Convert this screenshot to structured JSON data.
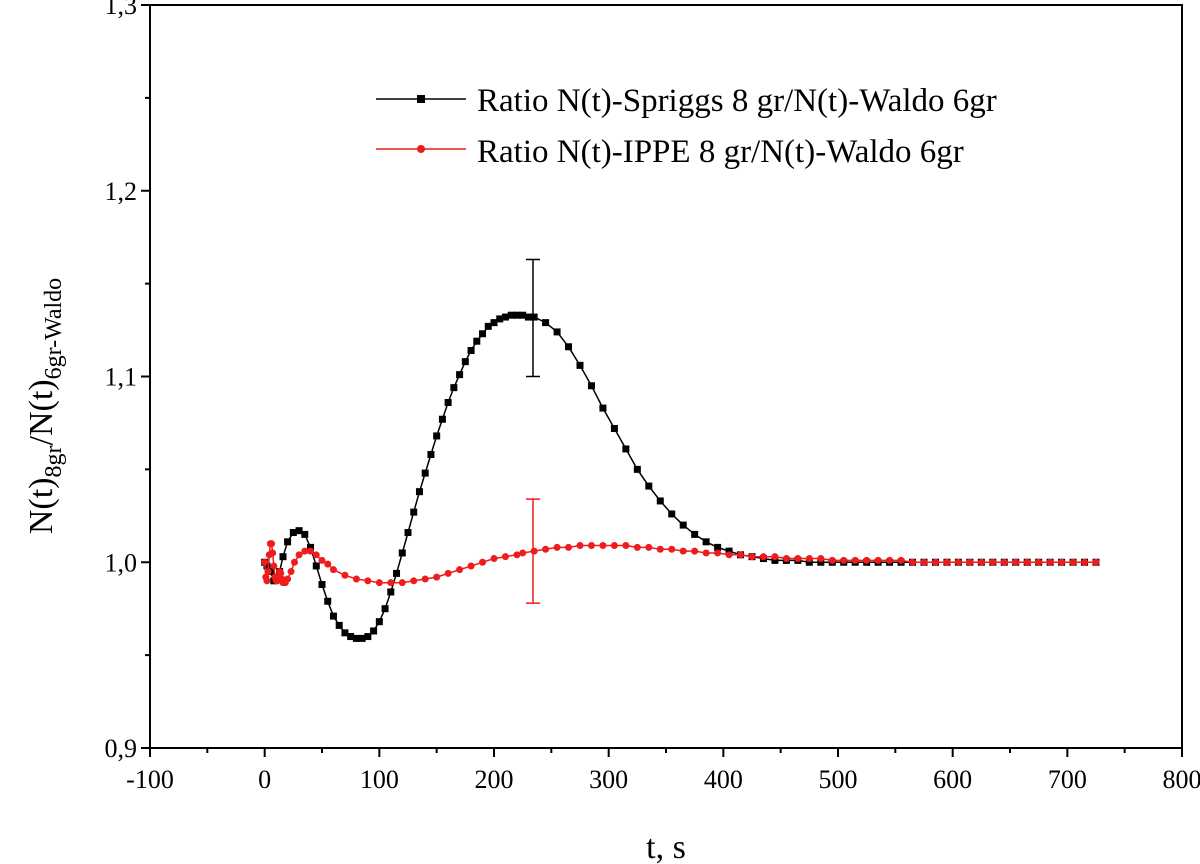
{
  "chart_data": {
    "type": "line",
    "title": "",
    "xlabel": "t, s",
    "ylabel": {
      "main1": "N(t)",
      "sub1": "8gr",
      "slash": "/N(t)",
      "sub2": "6gr-Waldo"
    },
    "xlim": [
      -100,
      800
    ],
    "ylim": [
      0.9,
      1.3
    ],
    "x_ticks": [
      -100,
      0,
      100,
      200,
      300,
      400,
      500,
      600,
      700,
      800
    ],
    "x_tick_labels": [
      "-100",
      "0",
      "100",
      "200",
      "300",
      "400",
      "500",
      "600",
      "700",
      "800"
    ],
    "y_ticks": [
      0.9,
      1.0,
      1.1,
      1.2,
      1.3
    ],
    "y_tick_labels": [
      "0,9",
      "1,0",
      "1,1",
      "1,2",
      "1,3"
    ],
    "legend_position": "top-right",
    "series": [
      {
        "name": "Ratio N(t)-Spriggs 8 gr/N(t)-Waldo 6gr",
        "color": "#000000",
        "marker": "square",
        "x": [
          0,
          2,
          5,
          8,
          10,
          13,
          16,
          20,
          25,
          30,
          35,
          40,
          45,
          50,
          55,
          60,
          65,
          70,
          75,
          80,
          85,
          90,
          95,
          100,
          105,
          110,
          115,
          120,
          125,
          130,
          135,
          140,
          145,
          150,
          155,
          160,
          165,
          170,
          175,
          180,
          185,
          190,
          195,
          200,
          205,
          210,
          215,
          220,
          225,
          230,
          235,
          245,
          255,
          265,
          275,
          285,
          295,
          305,
          315,
          325,
          335,
          345,
          355,
          365,
          375,
          385,
          395,
          405,
          415,
          425,
          435,
          445,
          455,
          465,
          475,
          485,
          495,
          505,
          515,
          525,
          535,
          545,
          555,
          565,
          575,
          585,
          595,
          605,
          615,
          625,
          635,
          645,
          655,
          665,
          675,
          685,
          695,
          705,
          715,
          725
        ],
        "y": [
          1.0,
          0.998,
          0.995,
          0.99,
          0.991,
          0.995,
          1.003,
          1.011,
          1.016,
          1.017,
          1.015,
          1.008,
          0.998,
          0.988,
          0.979,
          0.971,
          0.966,
          0.962,
          0.96,
          0.959,
          0.959,
          0.96,
          0.963,
          0.968,
          0.975,
          0.984,
          0.994,
          1.005,
          1.016,
          1.027,
          1.038,
          1.048,
          1.058,
          1.068,
          1.077,
          1.086,
          1.094,
          1.101,
          1.108,
          1.114,
          1.119,
          1.123,
          1.127,
          1.129,
          1.131,
          1.132,
          1.133,
          1.133,
          1.133,
          1.132,
          1.132,
          1.129,
          1.124,
          1.116,
          1.106,
          1.095,
          1.083,
          1.072,
          1.061,
          1.05,
          1.041,
          1.033,
          1.026,
          1.02,
          1.015,
          1.011,
          1.008,
          1.006,
          1.004,
          1.003,
          1.002,
          1.001,
          1.001,
          1.001,
          1.0,
          1.0,
          1.0,
          1.0,
          1.0,
          1.0,
          1.0,
          1.0,
          1.0,
          1.0,
          1.0,
          1.0,
          1.0,
          1.0,
          1.0,
          1.0,
          1.0,
          1.0,
          1.0,
          1.0,
          1.0,
          1.0,
          1.0,
          1.0,
          1.0,
          1.0
        ],
        "error_bar": {
          "x": 234,
          "y": 1.132,
          "low": 1.1,
          "high": 1.163
        }
      },
      {
        "name": "Ratio N(t)-IPPE 8 gr/N(t)-Waldo 6gr",
        "color": "#ee1c1c",
        "marker": "circle",
        "x": [
          0,
          1,
          2,
          3,
          4,
          5,
          6,
          7,
          8,
          9,
          10,
          11,
          12,
          13,
          14,
          15,
          16,
          18,
          20,
          23,
          26,
          30,
          35,
          40,
          45,
          50,
          55,
          60,
          70,
          80,
          90,
          100,
          110,
          120,
          130,
          140,
          150,
          160,
          170,
          180,
          190,
          200,
          210,
          220,
          225,
          235,
          245,
          255,
          265,
          275,
          285,
          295,
          305,
          315,
          325,
          335,
          345,
          355,
          365,
          375,
          385,
          395,
          405,
          415,
          425,
          435,
          445,
          455,
          465,
          475,
          485,
          495,
          505,
          515,
          525,
          535,
          545,
          555,
          565,
          575,
          585,
          595,
          605,
          615,
          625,
          635,
          645,
          655,
          665,
          675,
          685,
          695,
          705,
          715,
          725
        ],
        "y": [
          1.0,
          0.992,
          0.99,
          0.995,
          1.004,
          1.01,
          1.01,
          1.005,
          0.998,
          0.992,
          0.99,
          0.99,
          0.992,
          0.995,
          0.994,
          0.991,
          0.989,
          0.989,
          0.991,
          0.995,
          1.0,
          1.004,
          1.006,
          1.006,
          1.004,
          1.001,
          0.999,
          0.996,
          0.993,
          0.991,
          0.99,
          0.989,
          0.989,
          0.989,
          0.99,
          0.991,
          0.992,
          0.994,
          0.996,
          0.998,
          1.0,
          1.002,
          1.003,
          1.004,
          1.005,
          1.006,
          1.007,
          1.008,
          1.008,
          1.009,
          1.009,
          1.009,
          1.009,
          1.009,
          1.008,
          1.008,
          1.007,
          1.007,
          1.006,
          1.006,
          1.005,
          1.005,
          1.004,
          1.004,
          1.003,
          1.003,
          1.003,
          1.002,
          1.002,
          1.002,
          1.002,
          1.001,
          1.001,
          1.001,
          1.001,
          1.001,
          1.001,
          1.001,
          1.0,
          1.0,
          1.0,
          1.0,
          1.0,
          1.0,
          1.0,
          1.0,
          1.0,
          1.0,
          1.0,
          1.0,
          1.0,
          1.0,
          1.0,
          1.0,
          1.0
        ],
        "error_bar": {
          "x": 234,
          "y": 1.006,
          "low": 0.978,
          "high": 1.034
        }
      }
    ]
  }
}
